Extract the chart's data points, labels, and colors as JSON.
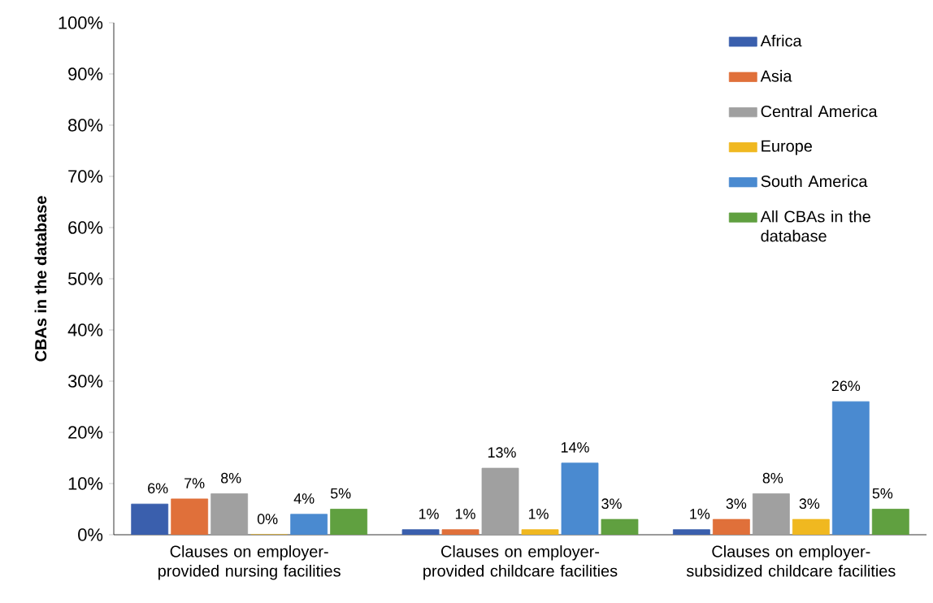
{
  "chart_data": {
    "type": "bar",
    "ylabel": "CBAs in the database",
    "categories": [
      "Clauses on employer-provided nursing facilities",
      "Clauses on employer-provided childcare facilities",
      "Clauses on employer-subsidized childcare facilities"
    ],
    "series": [
      {
        "name": "Africa",
        "color": "#3a5fad",
        "values": [
          6,
          1,
          1
        ],
        "value_labels": [
          "6%",
          "1%",
          "1%"
        ]
      },
      {
        "name": "Asia",
        "color": "#e0703a",
        "values": [
          7,
          1,
          3
        ],
        "value_labels": [
          "7%",
          "1%",
          "3%"
        ]
      },
      {
        "name": "Central America",
        "color": "#a0a0a0",
        "values": [
          8,
          13,
          8
        ],
        "value_labels": [
          "8%",
          "13%",
          "8%"
        ]
      },
      {
        "name": "Europe",
        "color": "#f0b820",
        "values": [
          0,
          1,
          3
        ],
        "value_labels": [
          "0%",
          "1%",
          "3%"
        ]
      },
      {
        "name": "South America",
        "color": "#4a8ad0",
        "values": [
          4,
          14,
          26
        ],
        "value_labels": [
          "4%",
          "14%",
          "26%"
        ]
      },
      {
        "name": "All CBAs in the database",
        "color": "#60a040",
        "values": [
          5,
          3,
          5
        ],
        "value_labels": [
          "5%",
          "3%",
          "5%"
        ]
      }
    ],
    "ylim": [
      0,
      100
    ],
    "yticks": [
      {
        "value": 0,
        "label": "0%"
      },
      {
        "value": 10,
        "label": "10%"
      },
      {
        "value": 20,
        "label": "20%"
      },
      {
        "value": 30,
        "label": "30%"
      },
      {
        "value": 40,
        "label": "40%"
      },
      {
        "value": 50,
        "label": "50%"
      },
      {
        "value": 60,
        "label": "60%"
      },
      {
        "value": 70,
        "label": "70%"
      },
      {
        "value": 80,
        "label": "80%"
      },
      {
        "value": 90,
        "label": "90%"
      },
      {
        "value": 100,
        "label": "100%"
      }
    ],
    "legend": "top right",
    "grid": false
  }
}
